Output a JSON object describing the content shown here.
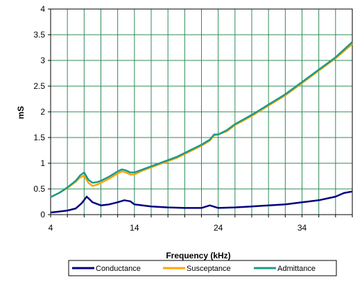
{
  "chart_data": {
    "type": "line",
    "title": "",
    "xlabel": "Frequency (kHz)",
    "ylabel": "mS",
    "xlim": [
      4,
      40
    ],
    "ylim": [
      0,
      4
    ],
    "x_ticks": [
      4,
      14,
      24,
      34
    ],
    "y_ticks": [
      0,
      0.5,
      1,
      1.5,
      2,
      2.5,
      3,
      3.5,
      4
    ],
    "y_tick_labels": [
      "0",
      "0.5",
      "1",
      "1.5",
      "2",
      "2.5",
      "3",
      "3.5",
      "4"
    ],
    "grid": true,
    "grid_color": "#2e8b57",
    "legend_position": "bottom",
    "series": [
      {
        "name": "Conductance",
        "color": "#00007f",
        "x": [
          4,
          5,
          6,
          7,
          7.7,
          8.3,
          9,
          10,
          11,
          12,
          12.8,
          13.5,
          14,
          15,
          16,
          18,
          20,
          22,
          23,
          24,
          26,
          28,
          30,
          32,
          34,
          36,
          38,
          39,
          40
        ],
        "y": [
          0.04,
          0.06,
          0.08,
          0.12,
          0.22,
          0.35,
          0.24,
          0.18,
          0.2,
          0.24,
          0.28,
          0.26,
          0.2,
          0.18,
          0.16,
          0.14,
          0.13,
          0.13,
          0.18,
          0.13,
          0.14,
          0.16,
          0.18,
          0.2,
          0.24,
          0.28,
          0.35,
          0.42,
          0.45
        ]
      },
      {
        "name": "Susceptance",
        "color": "#ffa500",
        "x": [
          4,
          5,
          6,
          7,
          7.5,
          8,
          8.5,
          9,
          9.5,
          10,
          11,
          12,
          12.5,
          13,
          13.5,
          14,
          15,
          16,
          17,
          18,
          19,
          20,
          21,
          22,
          23,
          23.5,
          24,
          25,
          26,
          28,
          30,
          32,
          34,
          36,
          38,
          40
        ],
        "y": [
          0.34,
          0.42,
          0.52,
          0.64,
          0.72,
          0.76,
          0.62,
          0.56,
          0.58,
          0.62,
          0.7,
          0.8,
          0.84,
          0.82,
          0.78,
          0.78,
          0.86,
          0.92,
          0.98,
          1.04,
          1.1,
          1.18,
          1.26,
          1.34,
          1.44,
          1.54,
          1.56,
          1.62,
          1.74,
          1.92,
          2.12,
          2.32,
          2.56,
          2.8,
          3.04,
          3.32
        ]
      },
      {
        "name": "Admittance",
        "color": "#1a9a8a",
        "x": [
          4,
          5,
          6,
          7,
          7.5,
          8,
          8.5,
          9,
          9.5,
          10,
          11,
          12,
          12.5,
          13,
          13.5,
          14,
          15,
          16,
          17,
          18,
          19,
          20,
          21,
          22,
          23,
          23.5,
          24,
          25,
          26,
          28,
          30,
          32,
          34,
          36,
          38,
          40
        ],
        "y": [
          0.34,
          0.42,
          0.53,
          0.66,
          0.76,
          0.82,
          0.68,
          0.62,
          0.63,
          0.66,
          0.74,
          0.84,
          0.88,
          0.86,
          0.82,
          0.82,
          0.88,
          0.94,
          1.0,
          1.06,
          1.12,
          1.2,
          1.28,
          1.36,
          1.46,
          1.56,
          1.56,
          1.64,
          1.76,
          1.94,
          2.14,
          2.34,
          2.58,
          2.82,
          3.06,
          3.36
        ]
      }
    ]
  }
}
